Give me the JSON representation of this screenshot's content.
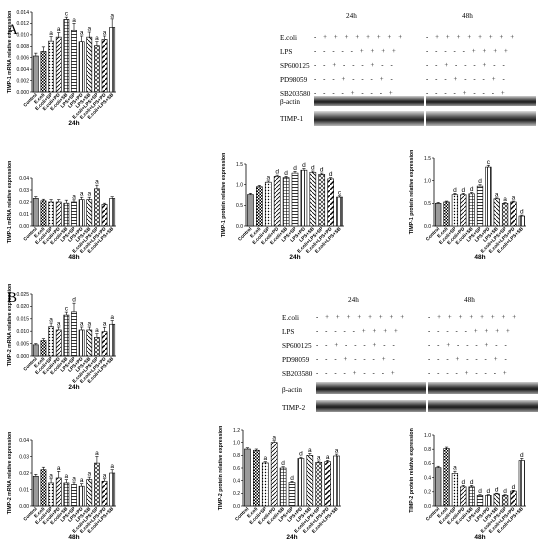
{
  "panel_labels": [
    "A",
    "B"
  ],
  "western_blots": [
    {
      "times": [
        "24h",
        "48h"
      ],
      "rows": [
        {
          "label": "E.coli",
          "signs": "- + + + + + + + +"
        },
        {
          "label": "LPS",
          "signs": "- - - - - + + + +"
        },
        {
          "label": "SP600125",
          "signs": "- - + - - - + - -"
        },
        {
          "label": "PD98059",
          "signs": "- - - + - - - + -"
        },
        {
          "label": "SB203580",
          "signs": "- - - - + - - - +"
        }
      ],
      "band_labels": [
        "β-actin",
        "TIMP-1"
      ]
    },
    {
      "times": [
        "24h",
        "48h"
      ],
      "rows": [
        {
          "label": "E.coli",
          "signs": "- + + + + + + + +"
        },
        {
          "label": "LPS",
          "signs": "- - - - - + + + +"
        },
        {
          "label": "SP600125",
          "signs": "- - + - - - + - -"
        },
        {
          "label": "PD98059",
          "signs": "- - - + - - - + -"
        },
        {
          "label": "SB203580",
          "signs": "- - - - + - - - +"
        }
      ],
      "band_labels": [
        "β-actin",
        "TIMP-2"
      ]
    }
  ],
  "chart_data": [
    {
      "type": "bar",
      "ylabel": "TIMP-1 mRNA relative expression",
      "xlabel": "24h",
      "ylim": [
        0,
        0.014
      ],
      "ytick_labels": [
        "0.000",
        "0.002",
        "0.004",
        "0.006",
        "0.008",
        "0.010",
        "0.012",
        "0.014"
      ],
      "categories": [
        "Control",
        "E.coli",
        "E.coli+SP",
        "E.coli+PD",
        "E.coli+SB",
        "LPS+SP",
        "LPS+PD",
        "LPS+SB",
        "E.coli+LPS+SP",
        "E.coli+LPS+PD",
        "E.coli+LPS+SB"
      ],
      "values": [
        0.0063,
        0.0071,
        0.0089,
        0.0096,
        0.0127,
        0.0108,
        0.0088,
        0.0096,
        0.0081,
        0.0092,
        0.0113
      ],
      "errors": [
        0.0005,
        0.0008,
        0.0008,
        0.0008,
        0.0004,
        0.0012,
        0.001,
        0.0009,
        0.0007,
        0.0006,
        0.0015
      ],
      "data_labels": [
        "",
        "",
        "a",
        "a",
        "c",
        "a",
        "a",
        "a",
        "a",
        "a",
        "a"
      ]
    },
    {
      "type": "bar",
      "ylabel": "TIMP-1 mRNA relative expression",
      "xlabel": "48h",
      "ylim": [
        0,
        0.04
      ],
      "ytick_labels": [
        "0.00",
        "0.01",
        "0.02",
        "0.03",
        "0.04"
      ],
      "categories": [
        "Control",
        "E.coli",
        "E.coli+SP",
        "E.coli+PD",
        "E.coli+SB",
        "LPS+SP",
        "LPS+PD",
        "LPS+SB",
        "E.coli+LPS+SP",
        "E.coli+LPS+PD",
        "E.coli+LPS+SB"
      ],
      "values": [
        0.023,
        0.021,
        0.02,
        0.02,
        0.019,
        0.02,
        0.022,
        0.022,
        0.031,
        0.018,
        0.023
      ],
      "errors": [
        0.0015,
        0.0013,
        0.002,
        0.002,
        0.0025,
        0.0018,
        0.002,
        0.002,
        0.003,
        0.001,
        0.0014
      ],
      "data_labels": [
        "",
        "",
        "",
        "",
        "",
        "a",
        "a",
        "a",
        "a",
        "",
        ""
      ]
    },
    {
      "type": "bar",
      "ylabel": "TIMP-1 protein relative expression",
      "xlabel": "24h",
      "ylim": [
        0,
        1.5
      ],
      "ytick_labels": [
        "0.0",
        "0.5",
        "1.0",
        "1.5"
      ],
      "categories": [
        "Control",
        "E.coli",
        "E.coli+SP",
        "E.coli+PD",
        "E.coli+SB",
        "LPS+SP",
        "LPS+PD",
        "LPS+SB",
        "E.coli+LPS+SP",
        "E.coli+LPS+PD",
        "E.coli+LPS+SB"
      ],
      "values": [
        0.76,
        0.95,
        1.06,
        1.2,
        1.17,
        1.28,
        1.35,
        1.3,
        1.25,
        1.14,
        0.7
      ],
      "errors": [
        0.03,
        0.03,
        0.03,
        0.03,
        0.03,
        0.04,
        0.04,
        0.03,
        0.03,
        0.03,
        0.03
      ],
      "data_labels": [
        "",
        "",
        "a",
        "d",
        "d",
        "d",
        "d",
        "d",
        "d",
        "d",
        "c"
      ]
    },
    {
      "type": "bar",
      "ylabel": "TIMP-1 protein relative expression",
      "xlabel": "48h",
      "ylim": [
        0,
        1.5
      ],
      "ytick_labels": [
        "0.0",
        "0.5",
        "1.0",
        "1.5"
      ],
      "categories": [
        "Control",
        "E.coli",
        "E.coli+SP",
        "E.coli+PD",
        "E.coli+SB",
        "LPS+SP",
        "LPS+PD",
        "LPS+SB",
        "E.coli+LPS+SP",
        "E.coli+LPS+PD",
        "E.coli+LPS+SB"
      ],
      "values": [
        0.5,
        0.53,
        0.69,
        0.69,
        0.71,
        0.88,
        1.3,
        0.6,
        0.5,
        0.53,
        0.22
      ],
      "errors": [
        0.02,
        0.02,
        0.03,
        0.03,
        0.03,
        0.03,
        0.04,
        0.02,
        0.02,
        0.02,
        0.02
      ],
      "data_labels": [
        "",
        "",
        "d",
        "d",
        "d",
        "d",
        "c",
        "a",
        "a",
        "a",
        "d"
      ]
    },
    {
      "type": "bar",
      "ylabel": "TIMP-2 mRNA relative expression",
      "xlabel": "24h",
      "ylim": [
        0,
        0.025
      ],
      "ytick_labels": [
        "0.000",
        "0.005",
        "0.010",
        "0.015",
        "0.020",
        "0.025"
      ],
      "categories": [
        "Control",
        "E.coli",
        "E.coli+SP",
        "E.coli+PD",
        "E.coli+SB",
        "LPS+SP",
        "LPS+PD",
        "LPS+SB",
        "E.coli+LPS+SP",
        "E.coli+LPS+PD",
        "E.coli+LPS+SB"
      ],
      "values": [
        0.0045,
        0.0062,
        0.0118,
        0.0105,
        0.0165,
        0.0178,
        0.0105,
        0.0105,
        0.0075,
        0.0098,
        0.0128
      ],
      "errors": [
        0.0005,
        0.0008,
        0.0015,
        0.0012,
        0.0012,
        0.0035,
        0.0012,
        0.0012,
        0.0015,
        0.0018,
        0.0015
      ],
      "data_labels": [
        "",
        "",
        "a",
        "a",
        "c",
        "d",
        "a",
        "a",
        "a",
        "a",
        "a"
      ]
    },
    {
      "type": "bar",
      "ylabel": "TIMP-2 mRNA relative expression",
      "xlabel": "48h",
      "ylim": [
        0,
        0.04
      ],
      "ytick_labels": [
        "0.00",
        "0.01",
        "0.02",
        "0.03",
        "0.04"
      ],
      "categories": [
        "Control",
        "E.coli",
        "E.coli+SP",
        "E.coli+PD",
        "E.coli+SB",
        "LPS+SP",
        "LPS+PD",
        "LPS+SB",
        "E.coli+LPS+SP",
        "E.coli+LPS+PD",
        "E.coli+LPS+SB"
      ],
      "values": [
        0.018,
        0.022,
        0.014,
        0.017,
        0.014,
        0.013,
        0.012,
        0.016,
        0.026,
        0.015,
        0.02
      ],
      "errors": [
        0.0012,
        0.0015,
        0.0025,
        0.004,
        0.002,
        0.0015,
        0.0015,
        0.0015,
        0.004,
        0.0015,
        0.002
      ],
      "data_labels": [
        "",
        "",
        "a",
        "a",
        "a",
        "a",
        "a",
        "a",
        "a",
        "a",
        "a"
      ]
    },
    {
      "type": "bar",
      "ylabel": "TIMP-2 protein relative expression",
      "xlabel": "24h",
      "ylim": [
        0,
        1.2
      ],
      "ytick_labels": [
        "0.0",
        "0.2",
        "0.4",
        "0.6",
        "0.8",
        "1.0",
        "1.2"
      ],
      "categories": [
        "Control",
        "E.coli",
        "E.coli+SP",
        "E.coli+PD",
        "E.coli+SB",
        "LPS+SP",
        "LPS+PD",
        "LPS+SB",
        "E.coli+LPS+SP",
        "E.coli+LPS+PD",
        "E.coli+LPS+SB"
      ],
      "values": [
        0.9,
        0.88,
        0.68,
        1.0,
        0.6,
        0.37,
        0.75,
        0.8,
        0.69,
        0.7,
        0.79
      ],
      "errors": [
        0.02,
        0.02,
        0.02,
        0.03,
        0.02,
        0.02,
        0.02,
        0.03,
        0.02,
        0.02,
        0.03
      ],
      "data_labels": [
        "",
        "",
        "a",
        "a",
        "d",
        "d",
        "d",
        "a",
        "a",
        "a",
        "a"
      ]
    },
    {
      "type": "bar",
      "ylabel": "TIMP-2 protein relative expression",
      "xlabel": "48h",
      "ylim": [
        0,
        1.0
      ],
      "ytick_labels": [
        "0.0",
        "0.2",
        "0.4",
        "0.6",
        "0.8",
        "1.0"
      ],
      "categories": [
        "Control",
        "E.coli",
        "E.coli+SP",
        "E.coli+PD",
        "E.coli+SB",
        "LPS+SP",
        "LPS+PD",
        "LPS+SB",
        "E.coli+LPS+SP",
        "E.coli+LPS+PD",
        "E.coli+LPS+SB"
      ],
      "values": [
        0.54,
        0.81,
        0.46,
        0.27,
        0.27,
        0.15,
        0.15,
        0.17,
        0.15,
        0.21,
        0.64
      ],
      "errors": [
        0.02,
        0.02,
        0.03,
        0.02,
        0.02,
        0.01,
        0.01,
        0.01,
        0.01,
        0.01,
        0.03
      ],
      "data_labels": [
        "",
        "",
        "a",
        "d",
        "d",
        "d",
        "d",
        "d",
        "d",
        "d",
        "d"
      ]
    }
  ]
}
